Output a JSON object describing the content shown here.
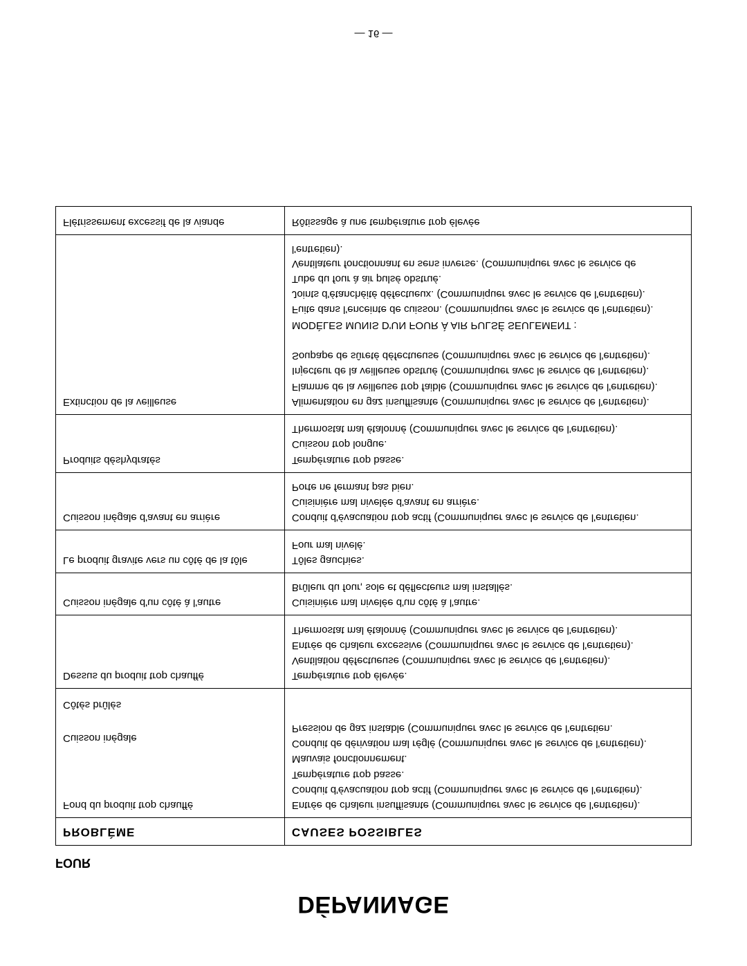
{
  "title": "DÉPANNAGE",
  "section": "FOUR",
  "columns": {
    "problem": "PROBLÈME",
    "causes": "CAUSES  POSSIBLES"
  },
  "footer": "— 16 —",
  "rows": [
    {
      "problem_lines": [
        "Fond du produit trop chauffé",
        "",
        "",
        "",
        "Cuisson inégale",
        "",
        "Côtés brûlés"
      ],
      "cause_lines": [
        "Entrée de chaleur insuffisante (Communiquer avec le service de l'entretien).",
        "Conduit d'évacuation trop actif (Communiquer avec le service de l'entretien).",
        "Température trop basse.",
        "Mauvais fonctionnement.",
        "Conduit de dérivation mal réglé (Communiquer avec le service de l'entretien).",
        "Pression de gaz instable (Communiquer avec le service de l'entretien."
      ]
    },
    {
      "problem_lines": [
        "Dessus du produit trop chauffé"
      ],
      "cause_lines": [
        "Température trop élevée.",
        "Ventilation défectueuse (Communiquer avec le service de l'entretien).",
        "Entrée de chaleur excessive (Communiquer avec le service de l'entretien).",
        "Thermostat mal étalonné (Communiquer avec le service de l'entretien)."
      ]
    },
    {
      "problem_lines": [
        "Cuisson inégale d'un côté à l'autre"
      ],
      "cause_lines": [
        "Cuisinière mal nivelée d'un côté à l'autre.",
        "Brûleur du four, sole et déflecteurs mal installés."
      ]
    },
    {
      "problem_lines": [
        "Le produit gravite vers un côté de la tôle"
      ],
      "cause_lines": [
        "Tôles gauchies.",
        "Four mal nivelé."
      ]
    },
    {
      "problem_lines": [
        "Cuisson inégale d'avant en arrière"
      ],
      "cause_lines": [
        "Conduit d'évacuation trop actif  (Communiquer avec le service de l'entretien.",
        "Cuisinière mal nivelée d'avant en arrière.",
        "Porte ne fermant pas bien."
      ]
    },
    {
      "problem_lines": [
        "Produits déshydratés"
      ],
      "cause_lines": [
        "Température trop basse.",
        "Cuisson trop longue.",
        "Thermostat mal étalonné (Communiquer avec le service de l'entretien)."
      ]
    },
    {
      "problem_lines": [
        "Extinction de la  veilleuse"
      ],
      "cause_lines": [
        "Alimentation en gaz insuffisante (Communiquer avec le service de l'entretien).",
        "Flamme de la veilleuse trop faible (Communiquer avec le service de l'entretien).",
        "Injecteur de la veilleuse obstrué (Communiquer avec le service de l'entretien).",
        "Soupape de sûreté défectueuse (Communiquer avec le service de l'entretien).",
        "",
        "MODÈLES MUNIS D'UN FOUR À AIR PULSÉ SEULEMENT :",
        "Fuite dans l'enceinte de cuisson. (Communiquer avec le service de l'entretien).",
        "Joints d'étanchéité défectueux. (Communiquer avec le service de l'entretien).",
        "Tube du four à air pulsé obstrué.",
        "Ventilateur fonctionnant en sens inverse. (Communiquer avec le service de l'entretien)."
      ]
    },
    {
      "problem_lines": [
        "Flétrissement excessif de la viande"
      ],
      "cause_lines": [
        "Rôtissage à une température trop élevée"
      ]
    }
  ]
}
